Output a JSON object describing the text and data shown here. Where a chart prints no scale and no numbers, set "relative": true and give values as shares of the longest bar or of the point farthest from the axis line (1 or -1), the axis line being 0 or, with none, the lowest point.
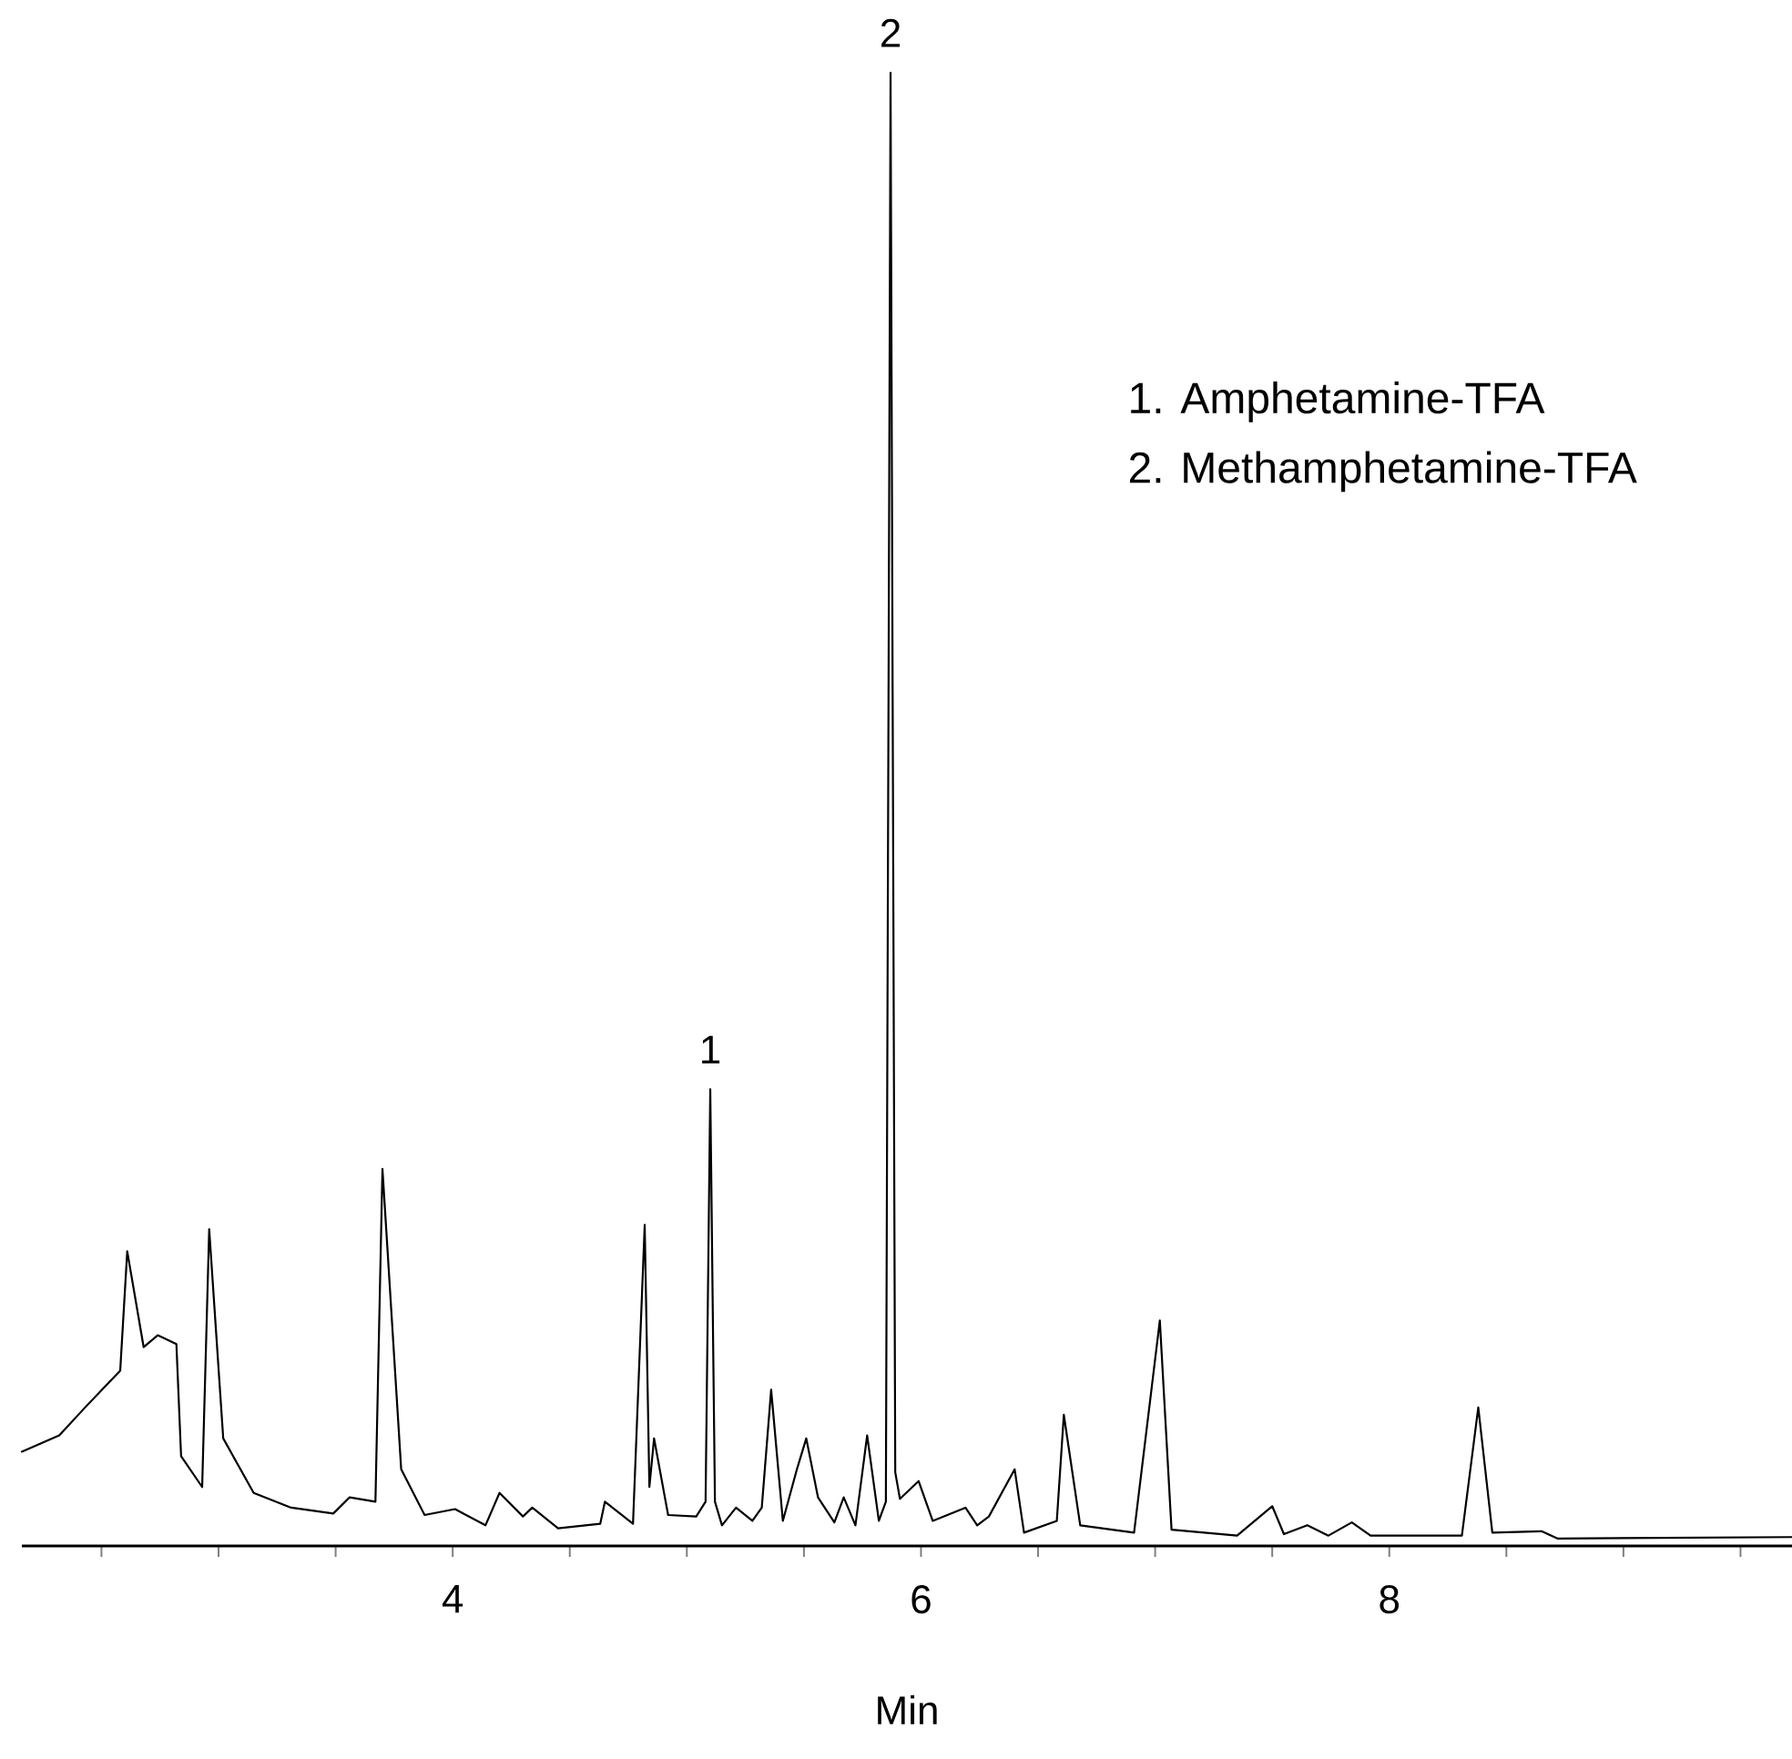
{
  "chart_data": {
    "type": "line",
    "relative": true,
    "xlabel": "Min",
    "color": "#000000",
    "xlim": [
      2.16,
      9.72
    ],
    "xticks": [
      {
        "value": 2.5,
        "label": null
      },
      {
        "value": 3,
        "label": null
      },
      {
        "value": 3.5,
        "label": null
      },
      4,
      {
        "value": 4.5,
        "label": null
      },
      {
        "value": 5,
        "label": null
      },
      {
        "value": 5.5,
        "label": null
      },
      6,
      {
        "value": 6.5,
        "label": null
      },
      {
        "value": 7,
        "label": null
      },
      {
        "value": 7.5,
        "label": null
      },
      8,
      {
        "value": 8.5,
        "label": null
      },
      {
        "value": 9,
        "label": null
      },
      {
        "value": 9.5,
        "label": null
      }
    ],
    "x": [
      2.16,
      2.32,
      2.43,
      2.58,
      2.61,
      2.68,
      2.74,
      2.82,
      2.84,
      2.93,
      2.96,
      3.02,
      3.15,
      3.31,
      3.49,
      3.56,
      3.67,
      3.7,
      3.78,
      3.88,
      4.01,
      4.14,
      4.2,
      4.3,
      4.34,
      4.45,
      4.63,
      4.65,
      4.77,
      4.82,
      4.84,
      4.86,
      4.92,
      5.04,
      5.08,
      5.1,
      5.12,
      5.15,
      5.21,
      5.28,
      5.32,
      5.36,
      5.41,
      5.47,
      5.51,
      5.56,
      5.63,
      5.67,
      5.72,
      5.77,
      5.82,
      5.85,
      5.87,
      5.89,
      5.91,
      5.99,
      6.05,
      6.19,
      6.24,
      6.29,
      6.4,
      6.44,
      6.58,
      6.61,
      6.68,
      6.91,
      7.02,
      7.07,
      7.35,
      7.5,
      7.55,
      7.65,
      7.74,
      7.84,
      7.92,
      8.31,
      8.38,
      8.44,
      8.65,
      8.72,
      9.72
    ],
    "values": [
      0.064,
      0.075,
      0.094,
      0.119,
      0.2,
      0.135,
      0.143,
      0.137,
      0.061,
      0.04,
      0.215,
      0.073,
      0.036,
      0.026,
      0.022,
      0.033,
      0.03,
      0.256,
      0.052,
      0.021,
      0.025,
      0.014,
      0.036,
      0.02,
      0.026,
      0.012,
      0.015,
      0.03,
      0.015,
      0.218,
      0.04,
      0.073,
      0.021,
      0.02,
      0.03,
      0.31,
      0.03,
      0.014,
      0.026,
      0.017,
      0.026,
      0.106,
      0.017,
      0.052,
      0.073,
      0.033,
      0.016,
      0.033,
      0.014,
      0.075,
      0.017,
      0.03,
      1.0,
      0.05,
      0.032,
      0.044,
      0.017,
      0.026,
      0.014,
      0.02,
      0.052,
      0.009,
      0.017,
      0.089,
      0.014,
      0.009,
      0.153,
      0.011,
      0.007,
      0.027,
      0.008,
      0.014,
      0.007,
      0.016,
      0.007,
      0.007,
      0.094,
      0.009,
      0.01,
      0.005,
      0.006
    ],
    "annotations": [
      {
        "text": "1",
        "x": 5.1,
        "y": 0.31
      },
      {
        "text": "2",
        "x": 5.87,
        "y": 1.0
      },
      "1.  Amphetamine-TFA",
      "2.  Methamphetamine-TFA"
    ]
  }
}
